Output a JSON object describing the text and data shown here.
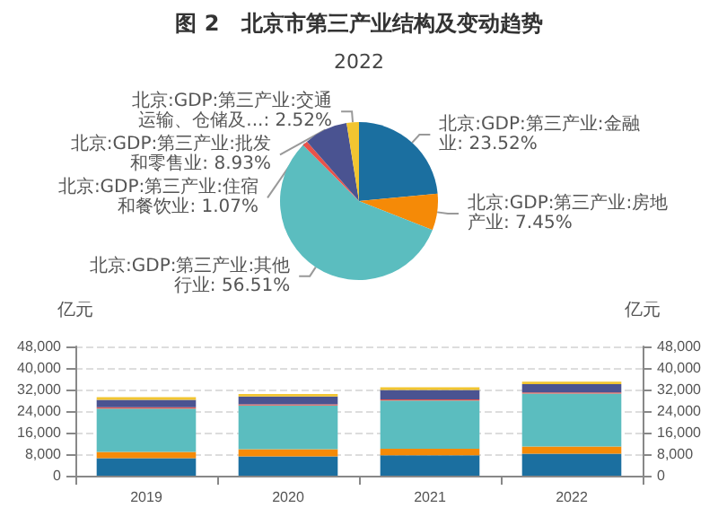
{
  "chart_data": [
    {
      "type": "pie",
      "title": "图 2　北京市第三产业结构及变动趋势",
      "subtitle": "2022",
      "categories": [
        "北京:GDP:第三产业:金融业",
        "北京:GDP:第三产业:房地产业",
        "北京:GDP:第三产业:其他行业",
        "北京:GDP:第三产业:住宿和餐饮业",
        "北京:GDP:第三产业:批发和零售业",
        "北京:GDP:第三产业:交通运输、仓储及..."
      ],
      "values": [
        23.52,
        7.45,
        56.51,
        1.07,
        8.93,
        2.52
      ],
      "value_labels": [
        "23.52%",
        "7.45%",
        "56.51%",
        "1.07%",
        "8.93%",
        "2.52%"
      ],
      "colors": [
        "#1b6fa0",
        "#f58a07",
        "#5bbdbf",
        "#e8534a",
        "#4a5391",
        "#f2c530"
      ],
      "legend": false
    },
    {
      "type": "bar",
      "stacked": true,
      "categories": [
        "2019",
        "2020",
        "2021",
        "2022"
      ],
      "series": [
        {
          "color": "#1b6fa0",
          "values": [
            6500,
            7200,
            7600,
            8200
          ]
        },
        {
          "color": "#f58a07",
          "values": [
            2300,
            2600,
            2400,
            2600
          ]
        },
        {
          "color": "#5bbdbf",
          "values": [
            16100,
            16300,
            17900,
            19700
          ]
        },
        {
          "color": "#e8534a",
          "values": [
            500,
            400,
            400,
            400
          ]
        },
        {
          "color": "#4a5391",
          "values": [
            2800,
            2900,
            3500,
            3100
          ]
        },
        {
          "color": "#f2c530",
          "values": [
            1000,
            900,
            1000,
            900
          ]
        }
      ],
      "ylabel": "亿元",
      "y2label": "亿元",
      "ylim": [
        0,
        48000
      ],
      "yticks": [
        {
          "value": 0,
          "label": "0"
        },
        {
          "value": 8000,
          "label": "8,000"
        },
        {
          "value": 16000,
          "label": "16,000"
        },
        {
          "value": 24000,
          "label": "24,000"
        },
        {
          "value": 32000,
          "label": "32,000"
        },
        {
          "value": 40000,
          "label": "40,000"
        },
        {
          "value": 48000,
          "label": "48,000"
        }
      ],
      "y2lim": [
        0,
        48000
      ],
      "y2ticks": [
        {
          "value": 0,
          "label": "0"
        },
        {
          "value": 8000,
          "label": "8,000"
        },
        {
          "value": 16000,
          "label": "16,000"
        },
        {
          "value": 24000,
          "label": "24,000"
        },
        {
          "value": 32000,
          "label": "32,000"
        },
        {
          "value": 40000,
          "label": "40,000"
        },
        {
          "value": 48000,
          "label": "48,000"
        }
      ],
      "grid": "y",
      "legend": false
    }
  ]
}
